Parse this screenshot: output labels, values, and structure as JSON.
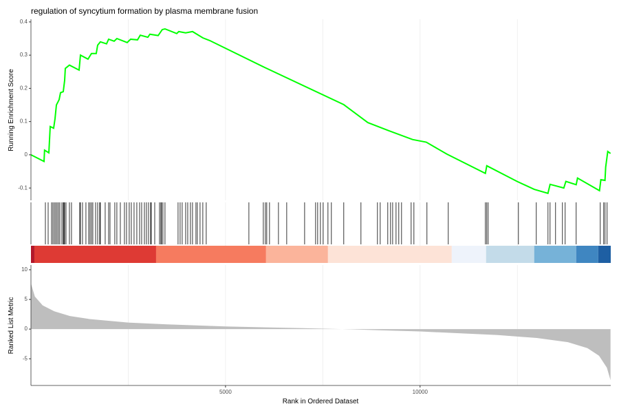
{
  "chart_data": [
    {
      "type": "line",
      "title": "regulation of syncytium formation by plasma membrane fusion",
      "ylabel": "Running Enrichment Score",
      "color": "#00ff00",
      "x": [
        0,
        336,
        350,
        460,
        495,
        583,
        618,
        654,
        724,
        760,
        830,
        866,
        883,
        989,
        1237,
        1272,
        1466,
        1555,
        1678,
        1714,
        1784,
        1943,
        1996,
        2138,
        2208,
        2473,
        2562,
        2739,
        2809,
        3004,
        3057,
        3269,
        3375,
        3445,
        3746,
        3799,
        3975,
        4152,
        4417,
        4594,
        6007,
        8039,
        8657,
        9187,
        9806,
        10159,
        10689,
        11678,
        11714,
        12491,
        12933,
        13286,
        13341,
        13694,
        13747,
        14012,
        14046,
        14611,
        14646,
        14752,
        14770,
        14823,
        14894
      ],
      "values": [
        0.0,
        -0.02,
        0.014,
        0.006,
        0.085,
        0.08,
        0.108,
        0.15,
        0.166,
        0.187,
        0.19,
        0.224,
        0.26,
        0.27,
        0.255,
        0.3,
        0.288,
        0.305,
        0.305,
        0.33,
        0.34,
        0.334,
        0.348,
        0.342,
        0.35,
        0.338,
        0.348,
        0.346,
        0.36,
        0.354,
        0.363,
        0.359,
        0.377,
        0.379,
        0.365,
        0.371,
        0.367,
        0.371,
        0.352,
        0.344,
        0.263,
        0.151,
        0.097,
        0.073,
        0.046,
        0.038,
        0.002,
        -0.056,
        -0.033,
        -0.08,
        -0.104,
        -0.116,
        -0.089,
        -0.1,
        -0.08,
        -0.09,
        -0.07,
        -0.108,
        -0.075,
        -0.077,
        -0.037,
        0.01,
        0.004
      ],
      "xlim": [
        0,
        14900
      ],
      "ylim": [
        -0.137,
        0.408
      ],
      "yticks": [
        -0.1,
        0.0,
        0.1,
        0.2,
        0.3,
        0.4
      ],
      "xgrid": [
        2500,
        5000,
        7500,
        10000,
        12500
      ]
    },
    {
      "type": "hits",
      "color": "#000000",
      "x": [
        371,
        442,
        530,
        565,
        601,
        636,
        671,
        707,
        742,
        795,
        830,
        848,
        866,
        901,
        989,
        1042,
        1254,
        1272,
        1325,
        1413,
        1484,
        1519,
        1555,
        1590,
        1661,
        1714,
        1767,
        1784,
        1908,
        1996,
        2032,
        2155,
        2208,
        2297,
        2403,
        2456,
        2527,
        2580,
        2650,
        2721,
        2792,
        2845,
        2916,
        2968,
        3021,
        3075,
        3092,
        3181,
        3304,
        3339,
        3357,
        3392,
        3445,
        3781,
        3834,
        3887,
        3976,
        4029,
        4099,
        4152,
        4240,
        4276,
        4346,
        4417,
        4505,
        5601,
        5972,
        6025,
        6060,
        6131,
        6361,
        6573,
        7033,
        7315,
        7368,
        7439,
        7510,
        7633,
        7721,
        8039,
        8481,
        8905,
        8976,
        9170,
        9241,
        9295,
        9383,
        9453,
        9524,
        9771,
        9842,
        10177,
        10725,
        11679,
        11714,
        11750,
        12528,
        12987,
        13288,
        13341,
        13482,
        13659,
        13729,
        14012,
        14631,
        14719,
        14754,
        14807
      ],
      "color_bands": [
        {
          "start": 0,
          "end": 88,
          "color": "#b2182b"
        },
        {
          "start": 88,
          "end": 3216,
          "color": "#de3a34"
        },
        {
          "start": 3216,
          "end": 6042,
          "color": "#f67b5f"
        },
        {
          "start": 6042,
          "end": 7633,
          "color": "#fbb49b"
        },
        {
          "start": 7633,
          "end": 10814,
          "color": "#fde3d7"
        },
        {
          "start": 10814,
          "end": 11696,
          "color": "#eef3fb"
        },
        {
          "start": 11696,
          "end": 12933,
          "color": "#c3dbe9"
        },
        {
          "start": 12933,
          "end": 14012,
          "color": "#76b2d8"
        },
        {
          "start": 14012,
          "end": 14578,
          "color": "#3f86c1"
        },
        {
          "start": 14578,
          "end": 14900,
          "color": "#1e5fa3"
        }
      ],
      "xlim": [
        0,
        14900
      ],
      "xgrid": [
        2500,
        5000,
        7500,
        10000,
        12500
      ]
    },
    {
      "type": "area",
      "ylabel": "Ranked List Metric",
      "xlabel": "Rank in Ordered Dataset",
      "color": "#bebebe",
      "x": [
        0,
        100,
        300,
        600,
        1000,
        1500,
        2500,
        3500,
        5000,
        7000,
        8000,
        9000,
        10000,
        11000,
        12000,
        13000,
        13800,
        14300,
        14600,
        14800,
        14894
      ],
      "values": [
        7.7,
        5.5,
        4.0,
        3.0,
        2.2,
        1.7,
        1.1,
        0.8,
        0.45,
        0.15,
        0.0,
        -0.2,
        -0.4,
        -0.7,
        -1.0,
        -1.5,
        -2.2,
        -3.2,
        -4.5,
        -6.5,
        -8.6
      ],
      "xlim": [
        0,
        14900
      ],
      "ylim": [
        -9.5,
        10.8
      ],
      "yticks": [
        -5,
        0,
        5,
        10
      ],
      "xticks": [
        5000,
        10000
      ],
      "xgrid": [
        2500,
        5000,
        7500,
        10000,
        12500
      ]
    }
  ]
}
